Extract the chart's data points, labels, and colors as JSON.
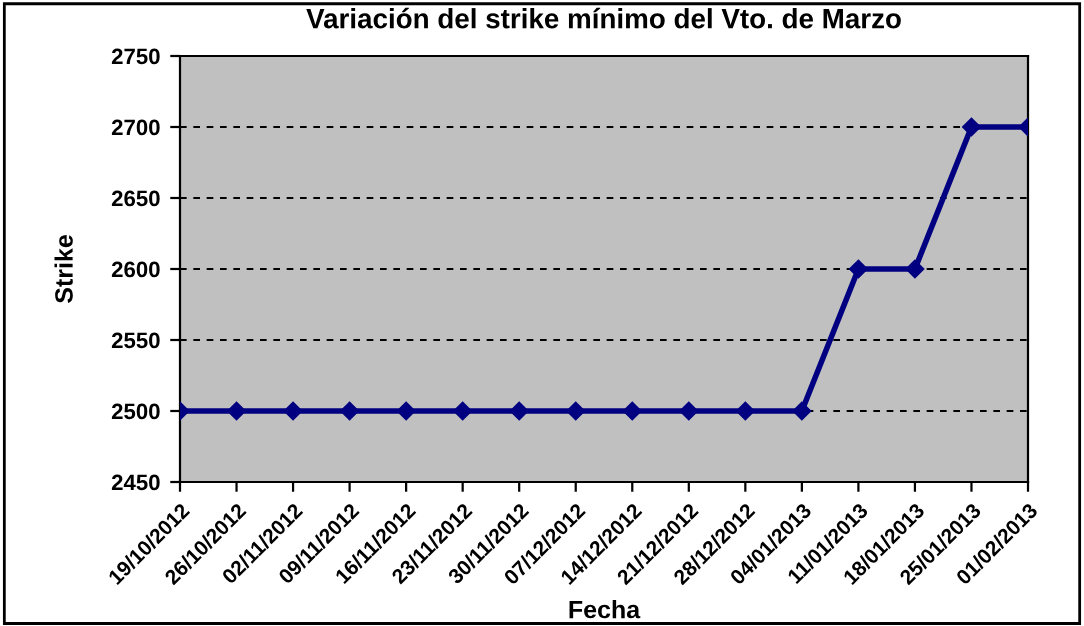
{
  "chart_data": {
    "type": "line",
    "title": "Variación del strike mínimo del Vto. de Marzo",
    "xlabel": "Fecha",
    "ylabel": "Strike",
    "categories": [
      "19/10/2012",
      "26/10/2012",
      "02/11/2012",
      "09/11/2012",
      "16/11/2012",
      "23/11/2012",
      "30/11/2012",
      "07/12/2012",
      "14/12/2012",
      "21/12/2012",
      "28/12/2012",
      "04/01/2013",
      "11/01/2013",
      "18/01/2013",
      "25/01/2013",
      "01/02/2013"
    ],
    "series": [
      {
        "color": "#000080",
        "values": [
          2500,
          2500,
          2500,
          2500,
          2500,
          2500,
          2500,
          2500,
          2500,
          2500,
          2500,
          2500,
          2600,
          2600,
          2700,
          2700
        ]
      }
    ],
    "ylim": [
      2450,
      2750
    ],
    "yticks": [
      2450,
      2500,
      2550,
      2600,
      2650,
      2700,
      2750
    ],
    "grid": "y",
    "marker": "diamond",
    "line_style": "solid",
    "legend": false
  }
}
